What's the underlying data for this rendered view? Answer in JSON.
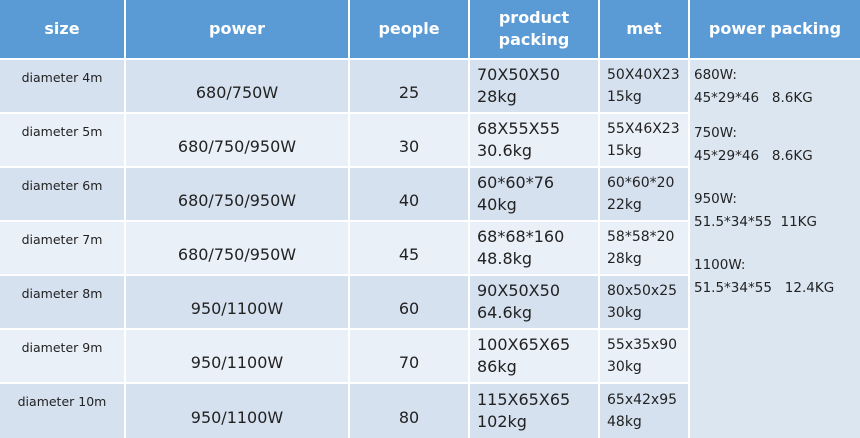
{
  "header": [
    "size",
    "power",
    "people",
    "product packing",
    "met",
    "power packing"
  ],
  "rows": [
    {
      "size": "diameter 4m",
      "power": "680/750W",
      "people": 25,
      "product_packing": [
        "70X50X50",
        "28kg"
      ],
      "met": [
        "50X40X23",
        "15kg"
      ]
    },
    {
      "size": "diameter 5m",
      "power": "680/750/950W",
      "people": 30,
      "product_packing": [
        "68X55X55",
        "30.6kg"
      ],
      "met": [
        "55X46X23",
        "15kg"
      ]
    },
    {
      "size": "diameter 6m",
      "power": "680/750/950W",
      "people": 40,
      "product_packing": [
        "60*60*76",
        "40kg"
      ],
      "met": [
        "60*60*20",
        "22kg"
      ]
    },
    {
      "size": "diameter 7m",
      "power": "680/750/950W",
      "people": 45,
      "product_packing": [
        "68*68*160",
        "48.8kg"
      ],
      "met": [
        "58*58*20",
        "28kg"
      ]
    },
    {
      "size": "diameter 8m",
      "power": "950/1100W",
      "people": 60,
      "product_packing": [
        "90X50X50",
        "64.6kg"
      ],
      "met": [
        "80x50x25",
        "30kg"
      ]
    },
    {
      "size": "diameter 9m",
      "power": "950/1100W",
      "people": 70,
      "product_packing": [
        "100X65X65",
        "86kg"
      ],
      "met": [
        "55x35x90",
        "30kg"
      ]
    },
    {
      "size": "diameter 10m",
      "power": "950/1100W",
      "people": 80,
      "product_packing": [
        "115X65X65",
        "102kg"
      ],
      "met": [
        "65x42x95",
        "48kg"
      ]
    }
  ],
  "power_packing": [
    {
      "power": "680W:",
      "packing": "45*29*46   8.6KG"
    },
    {
      "power": "750W:",
      "packing": "45*29*46   8.6KG"
    },
    {
      "power": "950W:",
      "packing": "51.5*34*55  11KG"
    },
    {
      "power": "1100W:",
      "packing": "51.5*34*55   12.4KG"
    }
  ]
}
